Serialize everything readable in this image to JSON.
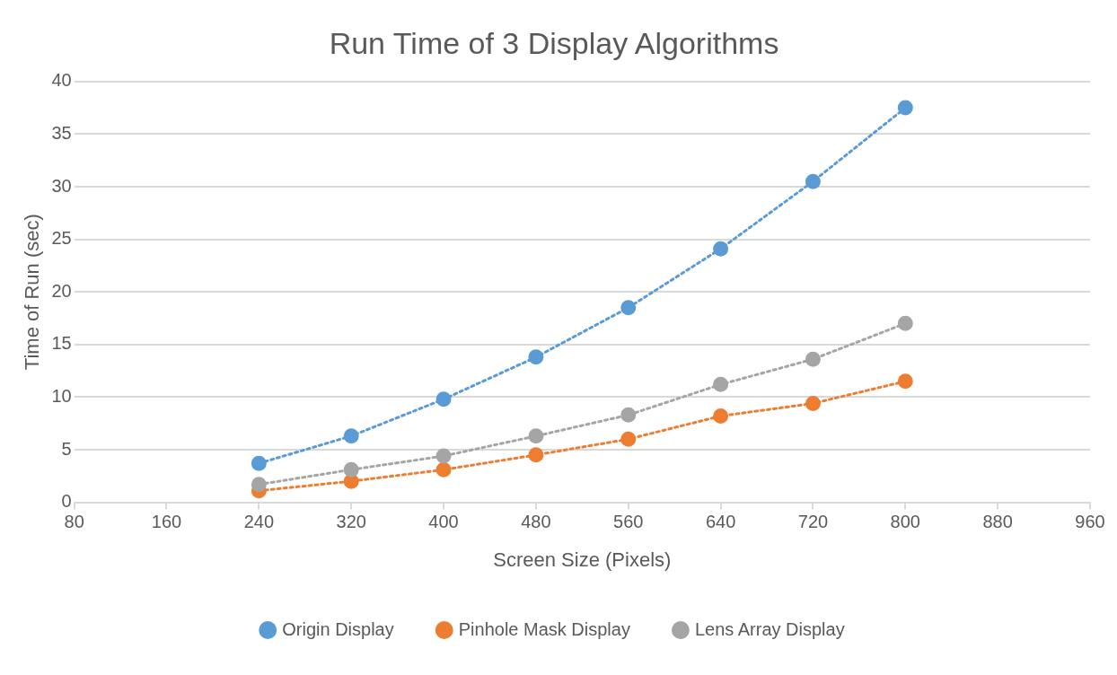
{
  "chart_data": {
    "type": "line",
    "title": "Run Time of 3 Display Algorithms",
    "xlabel": "Screen Size (Pixels)",
    "ylabel": "Time of Run (sec)",
    "x": [
      240,
      320,
      400,
      480,
      560,
      640,
      720,
      800
    ],
    "series": [
      {
        "name": "Origin Display",
        "color": "#5b9bd5",
        "values": [
          3.7,
          6.3,
          9.8,
          13.8,
          18.5,
          24.1,
          30.5,
          37.5
        ]
      },
      {
        "name": "Pinhole Mask Display",
        "color": "#ed7d31",
        "values": [
          1.1,
          2.0,
          3.1,
          4.5,
          6.0,
          8.2,
          9.4,
          11.5
        ]
      },
      {
        "name": "Lens Array Display",
        "color": "#a5a5a5",
        "values": [
          1.7,
          3.1,
          4.4,
          6.3,
          8.3,
          11.2,
          13.6,
          17.0
        ]
      }
    ],
    "xlim": [
      80,
      960
    ],
    "xticks": [
      80,
      160,
      240,
      320,
      400,
      480,
      560,
      640,
      720,
      800,
      880,
      960
    ],
    "ylim": [
      0,
      40
    ],
    "yticks": [
      0,
      5,
      10,
      15,
      20,
      25,
      30,
      35,
      40
    ],
    "grid": "y",
    "legend": "bottom",
    "marker": "circle",
    "line_style": "dotted"
  }
}
